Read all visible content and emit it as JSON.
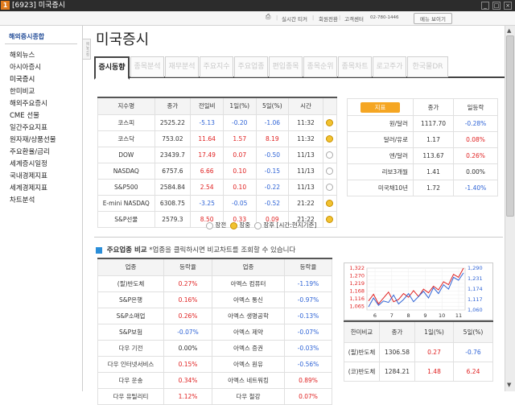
{
  "window": {
    "number": "1",
    "title": "[6923] 미국증시",
    "controls": [
      "_",
      "□",
      "×"
    ]
  },
  "service": {
    "print": "⎙",
    "items": [
      "실시간 티커",
      "회원전환",
      "고객센터"
    ],
    "phone": "02-780-1446",
    "button": "메뉴 보이기"
  },
  "sidebar": {
    "header": "해외증시종합",
    "handle": "메뉴고정",
    "items": [
      "해외뉴스",
      "아시아증시",
      "미국증시",
      "한미비교",
      "해외주요증시",
      "CME 선물",
      "일간주요지표",
      "원자재/상품선물",
      "주요환율/금리",
      "세계증시일정",
      "국내경제지표",
      "세계경제지표",
      "차트분석"
    ]
  },
  "page_title": "미국증시",
  "tabs": [
    "증시동향",
    "종목분석",
    "재무분석",
    "주요지수",
    "주요업종",
    "편입종목",
    "종목순위",
    "종목차트",
    "로고주가",
    "한국물DR"
  ],
  "index_table": {
    "headers": [
      "지수명",
      "종가",
      "전일비",
      "1일(%)",
      "5일(%)",
      "시간"
    ],
    "rows": [
      {
        "name": "코스피",
        "close": "2525.22",
        "chg": "-5.13",
        "d1": "-0.20",
        "d5": "-1.06",
        "time": "11:32",
        "c": "dn",
        "c1": "dn",
        "c5": "dn",
        "live": true
      },
      {
        "name": "코스닥",
        "close": "753.02",
        "chg": "11.64",
        "d1": "1.57",
        "d5": "8.19",
        "time": "11:32",
        "c": "up",
        "c1": "up",
        "c5": "up",
        "live": true
      },
      {
        "name": "DOW",
        "close": "23439.7",
        "chg": "17.49",
        "d1": "0.07",
        "d5": "-0.50",
        "time": "11/13",
        "c": "up",
        "c1": "up",
        "c5": "dn",
        "live": false
      },
      {
        "name": "NASDAQ",
        "close": "6757.6",
        "chg": "6.66",
        "d1": "0.10",
        "d5": "-0.15",
        "time": "11/13",
        "c": "up",
        "c1": "up",
        "c5": "dn",
        "live": false
      },
      {
        "name": "S&P500",
        "close": "2584.84",
        "chg": "2.54",
        "d1": "0.10",
        "d5": "-0.22",
        "time": "11/13",
        "c": "up",
        "c1": "up",
        "c5": "dn",
        "live": false
      },
      {
        "name": "E-mini NASDAQ",
        "close": "6308.75",
        "chg": "-3.25",
        "d1": "-0.05",
        "d5": "-0.52",
        "time": "21:22",
        "c": "dn",
        "c1": "dn",
        "c5": "dn",
        "live": true
      },
      {
        "name": "S&P선물",
        "close": "2579.3",
        "chg": "8.50",
        "d1": "0.33",
        "d5": "0.09",
        "time": "21:22",
        "c": "up",
        "c1": "up",
        "c5": "up",
        "live": true
      }
    ]
  },
  "legend": {
    "open": "장전",
    "during": "장중",
    "close": "장후 [시간:현지기준]"
  },
  "indicator_table": {
    "headers": [
      "지표",
      "종가",
      "일등락"
    ],
    "rows": [
      {
        "name": "원/달러",
        "close": "1117.70",
        "chg": "-0.28%",
        "c": "dn"
      },
      {
        "name": "달러/유로",
        "close": "1.17",
        "chg": "0.08%",
        "c": "up"
      },
      {
        "name": "엔/달러",
        "close": "113.67",
        "chg": "0.26%",
        "c": "up"
      },
      {
        "name": "리보3개월",
        "close": "1.41",
        "chg": "0.00%",
        "c": "eq"
      },
      {
        "name": "미국채10년",
        "close": "1.72",
        "chg": "-1.40%",
        "c": "dn"
      }
    ]
  },
  "section": {
    "title": "주요업종 비교",
    "note": "*업종을 클릭하시면 비교차트를 조회할 수 있습니다"
  },
  "sector_table": {
    "headers": [
      "업종",
      "등락율",
      "업종",
      "등락율"
    ],
    "rows": [
      {
        "a": "(필)반도체",
        "ar": "0.27%",
        "ac": "up",
        "b": "아멕스 컴퓨터",
        "br": "-1.19%",
        "bc": "dn"
      },
      {
        "a": "S&P은행",
        "ar": "0.16%",
        "ac": "up",
        "b": "아멕스 통신",
        "br": "-0.97%",
        "bc": "dn"
      },
      {
        "a": "S&P소매업",
        "ar": "0.26%",
        "ac": "up",
        "b": "아멕스 생명공학",
        "br": "-0.13%",
        "bc": "dn"
      },
      {
        "a": "S&P보험",
        "ar": "-0.07%",
        "ac": "dn",
        "b": "아멕스 제약",
        "br": "-0.07%",
        "bc": "dn"
      },
      {
        "a": "다우 기전",
        "ar": "0.00%",
        "ac": "eq",
        "b": "아멕스 증권",
        "br": "-0.03%",
        "bc": "dn"
      },
      {
        "a": "다우 인터넷서비스",
        "ar": "0.15%",
        "ac": "up",
        "b": "아멕스 원유",
        "br": "-0.56%",
        "bc": "dn"
      },
      {
        "a": "다우 운송",
        "ar": "0.34%",
        "ac": "up",
        "b": "아멕스 네트워킹",
        "br": "0.89%",
        "bc": "up"
      },
      {
        "a": "다우 유틸리티",
        "ar": "1.12%",
        "ac": "up",
        "b": "다우 철강",
        "br": "0.07%",
        "bc": "up"
      }
    ]
  },
  "compare_chart": {
    "left_ticks": [
      "1,322",
      "1,296",
      "1,270",
      "1,245",
      "1,219",
      "1,193",
      "1,168",
      "1,142",
      "1,116",
      "1,091",
      "1,065",
      "1,039"
    ],
    "right_ticks": [
      "1,290",
      "1,231",
      "1,174",
      "1,117",
      "1,060"
    ],
    "x_ticks": [
      "6",
      "7",
      "8",
      "9",
      "10",
      "11"
    ],
    "series": [
      {
        "color": "#e02222",
        "values": [
          1100,
          1145,
          1080,
          1120,
          1160,
          1095,
          1110,
          1150,
          1125,
          1170,
          1130,
          1180,
          1155,
          1200,
          1175,
          1230,
          1210,
          1280,
          1260,
          1322
        ]
      },
      {
        "color": "#2f64d6",
        "values": [
          1060,
          1120,
          1070,
          1100,
          1090,
          1140,
          1080,
          1110,
          1150,
          1095,
          1130,
          1165,
          1120,
          1190,
          1150,
          1210,
          1180,
          1260,
          1240,
          1290
        ]
      }
    ]
  },
  "compare_table": {
    "headers": [
      "한미비교",
      "종가",
      "1일(%)",
      "5일(%)"
    ],
    "rows": [
      {
        "name": "(필)반도체",
        "close": "1306.58",
        "d1": "0.27",
        "d5": "-0.76",
        "c1": "up",
        "c5": "dn"
      },
      {
        "name": "(코)반도체",
        "close": "1284.21",
        "d1": "1.48",
        "d5": "6.24",
        "c1": "up",
        "c5": "up"
      }
    ]
  }
}
